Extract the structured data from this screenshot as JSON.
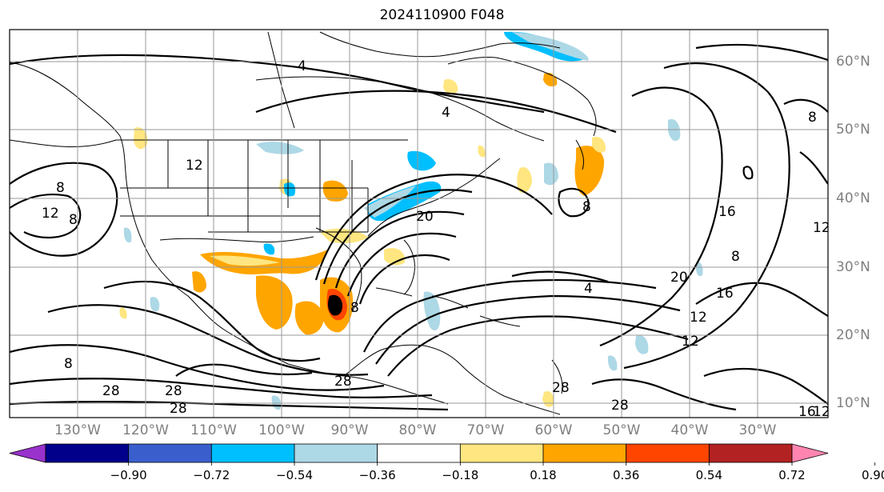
{
  "title": "2024110900 F048",
  "lon_labels": [
    "130°W",
    "120°W",
    "110°W",
    "100°W",
    "90°W",
    "80°W",
    "70°W",
    "60°W",
    "50°W",
    "40°W",
    "30°W"
  ],
  "lat_labels": [
    "60°N",
    "50°N",
    "40°N",
    "30°N",
    "20°N",
    "10°N"
  ],
  "contour_labels": [
    "4",
    "4",
    "4",
    "8",
    "8",
    "8",
    "8",
    "8",
    "8",
    "8",
    "12",
    "12",
    "12",
    "12",
    "12",
    "16",
    "16",
    "16",
    "20",
    "20",
    "28",
    "28",
    "28",
    "28",
    "28",
    "28",
    "12"
  ],
  "colorbar": {
    "ticks": [
      "−0.90",
      "−0.72",
      "−0.54",
      "−0.36",
      "−0.18",
      "0.18",
      "0.36",
      "0.54",
      "0.72",
      "0.90"
    ],
    "colors": [
      "#9932cc",
      "#00008b",
      "#3a5fcd",
      "#00bfff",
      "#add8e6",
      "#ffffff",
      "#ffe680",
      "#ffa500",
      "#ff4500",
      "#b22222",
      "#ff85b0"
    ]
  }
}
